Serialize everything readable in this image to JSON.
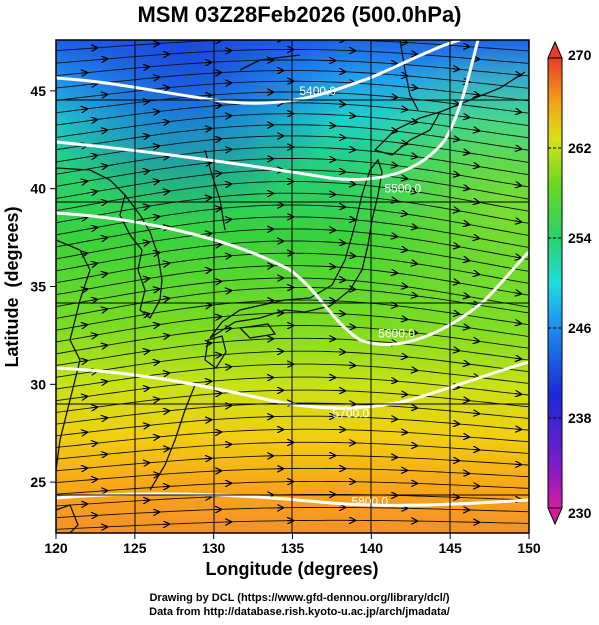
{
  "title": "MSM 03Z28Feb2026 (500.0hPa)",
  "x_axis": {
    "label": "Longitude (degrees)",
    "range": [
      120,
      150
    ],
    "ticks": [
      "120",
      "125",
      "130",
      "135",
      "140",
      "145",
      "150"
    ]
  },
  "y_axis": {
    "label": "Latitude  (degrees)",
    "range": [
      22.4,
      47.6
    ],
    "ticks": [
      "25",
      "30",
      "35",
      "40",
      "45"
    ]
  },
  "colorbar": {
    "range": [
      230,
      270
    ],
    "ticks": [
      "230",
      "238",
      "246",
      "254",
      "262",
      "270"
    ]
  },
  "contours": [
    {
      "label": "5400.0",
      "lon": 136.6,
      "lat": 45.0
    },
    {
      "label": "5500.0",
      "lon": 142.0,
      "lat": 40.0
    },
    {
      "label": "5600.0",
      "lon": 141.6,
      "lat": 32.6
    },
    {
      "label": "5700.0",
      "lon": 138.7,
      "lat": 28.5
    },
    {
      "label": "5800.0",
      "lon": 139.9,
      "lat": 24.0
    }
  ],
  "credits": {
    "line1": "Drawing by DCL (https://www.gfd-dennou.org/library/dcl/)",
    "line2": "Data from http://database.rish.kyoto-u.ac.jp/arch/jmadata/"
  }
}
